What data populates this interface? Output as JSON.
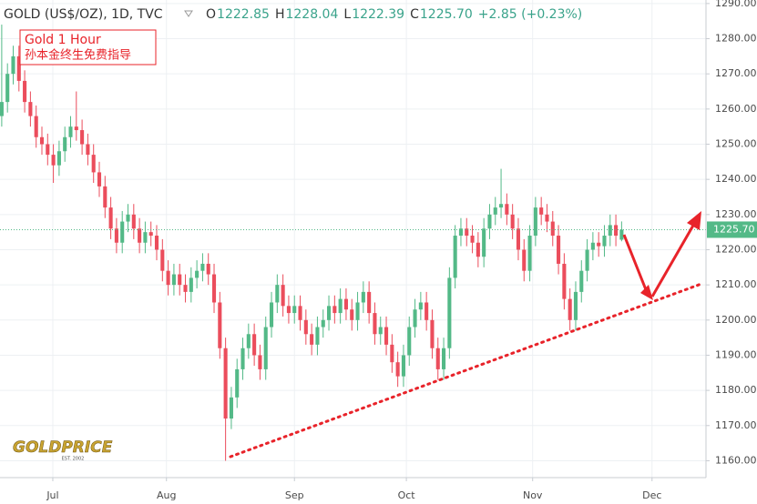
{
  "chart_data": {
    "type": "candlestick",
    "header": {
      "symbol": "GOLD (US$/OZ), 1D, TVC",
      "ohlc": [
        {
          "key": "O",
          "value": "1222.85"
        },
        {
          "key": "H",
          "value": "1228.04"
        },
        {
          "key": "L",
          "value": "1222.39"
        },
        {
          "key": "C",
          "value": "1225.70"
        }
      ],
      "change": "+2.85 (+0.23%)"
    },
    "annotation": {
      "line1": "Gold 1 Hour",
      "line2": "孙本金终生免费指导"
    },
    "logo": {
      "name": "GOLDPRICE",
      "est": "EST. 2002"
    },
    "last_price_label": "1225.70",
    "up_color": "#53b987",
    "down_color": "#eb4d5c",
    "open": [
      1258,
      1262,
      1270,
      1275,
      1268,
      1262,
      1258,
      1252,
      1250,
      1247,
      1244,
      1248,
      1252,
      1255,
      1254,
      1250,
      1247,
      1242,
      1238,
      1232,
      1226,
      1222,
      1228,
      1230,
      1226,
      1222,
      1225,
      1224,
      1220,
      1214,
      1210,
      1213,
      1210,
      1208,
      1212,
      1214,
      1216,
      1213,
      1205,
      1192,
      1172,
      1178,
      1186,
      1192,
      1196,
      1190,
      1186,
      1198,
      1205,
      1210,
      1204,
      1202,
      1204,
      1200,
      1196,
      1193,
      1198,
      1200,
      1204,
      1202,
      1206,
      1203,
      1200,
      1205,
      1208,
      1202,
      1196,
      1198,
      1193,
      1188,
      1184,
      1190,
      1198,
      1203,
      1205,
      1200,
      1192,
      1186,
      1192,
      1212,
      1224,
      1226,
      1224,
      1222,
      1218,
      1226,
      1230,
      1232,
      1233,
      1230,
      1226,
      1220,
      1214,
      1224,
      1232,
      1230,
      1228,
      1224,
      1216,
      1206,
      1200,
      1208,
      1214,
      1220,
      1222,
      1221,
      1224,
      1227,
      1222.85
    ],
    "high": [
      1284,
      1273,
      1278,
      1278,
      1271,
      1265,
      1261,
      1255,
      1253,
      1250,
      1251,
      1255,
      1258,
      1265,
      1257,
      1253,
      1250,
      1245,
      1241,
      1235,
      1229,
      1231,
      1233,
      1233,
      1229,
      1228,
      1228,
      1227,
      1223,
      1217,
      1216,
      1216,
      1213,
      1215,
      1217,
      1219,
      1219,
      1216,
      1208,
      1195,
      1181,
      1189,
      1195,
      1199,
      1199,
      1193,
      1201,
      1208,
      1213,
      1213,
      1207,
      1207,
      1207,
      1203,
      1199,
      1201,
      1203,
      1207,
      1207,
      1209,
      1209,
      1206,
      1208,
      1211,
      1211,
      1205,
      1201,
      1201,
      1196,
      1191,
      1193,
      1201,
      1206,
      1208,
      1208,
      1203,
      1195,
      1195,
      1215,
      1227,
      1229,
      1229,
      1227,
      1225,
      1229,
      1233,
      1235,
      1243,
      1236,
      1233,
      1229,
      1223,
      1227,
      1235,
      1235,
      1233,
      1231,
      1227,
      1219,
      1209,
      1211,
      1217,
      1223,
      1225,
      1225,
      1227,
      1230,
      1230,
      1228.04
    ],
    "low": [
      1255,
      1259,
      1267,
      1265,
      1259,
      1255,
      1249,
      1247,
      1244,
      1239,
      1241,
      1245,
      1249,
      1251,
      1247,
      1244,
      1239,
      1235,
      1229,
      1223,
      1219,
      1219,
      1225,
      1223,
      1219,
      1219,
      1221,
      1217,
      1211,
      1207,
      1207,
      1207,
      1205,
      1205,
      1209,
      1211,
      1210,
      1202,
      1189,
      1160,
      1169,
      1175,
      1183,
      1189,
      1187,
      1183,
      1183,
      1195,
      1202,
      1201,
      1199,
      1199,
      1197,
      1193,
      1190,
      1190,
      1195,
      1197,
      1199,
      1199,
      1200,
      1197,
      1197,
      1202,
      1199,
      1193,
      1193,
      1190,
      1185,
      1181,
      1181,
      1187,
      1195,
      1200,
      1197,
      1189,
      1183,
      1183,
      1189,
      1209,
      1221,
      1221,
      1219,
      1215,
      1215,
      1223,
      1227,
      1229,
      1227,
      1223,
      1217,
      1211,
      1211,
      1221,
      1227,
      1225,
      1221,
      1213,
      1203,
      1197,
      1197,
      1205,
      1211,
      1217,
      1218,
      1218,
      1221,
      1221,
      1222.39
    ],
    "close": [
      1262,
      1270,
      1275,
      1268,
      1262,
      1258,
      1252,
      1250,
      1247,
      1244,
      1248,
      1252,
      1255,
      1254,
      1250,
      1247,
      1242,
      1238,
      1232,
      1226,
      1222,
      1228,
      1230,
      1226,
      1222,
      1225,
      1224,
      1220,
      1214,
      1210,
      1213,
      1210,
      1208,
      1212,
      1214,
      1216,
      1213,
      1205,
      1192,
      1172,
      1178,
      1186,
      1192,
      1196,
      1190,
      1186,
      1198,
      1205,
      1210,
      1204,
      1202,
      1204,
      1200,
      1196,
      1193,
      1198,
      1200,
      1204,
      1202,
      1206,
      1203,
      1200,
      1205,
      1208,
      1202,
      1196,
      1198,
      1193,
      1188,
      1184,
      1190,
      1198,
      1203,
      1205,
      1200,
      1192,
      1186,
      1192,
      1212,
      1224,
      1226,
      1224,
      1222,
      1218,
      1226,
      1230,
      1232,
      1233,
      1230,
      1226,
      1220,
      1214,
      1224,
      1232,
      1230,
      1228,
      1224,
      1216,
      1206,
      1200,
      1208,
      1214,
      1220,
      1222,
      1221,
      1224,
      1227,
      1224,
      1225.7
    ],
    "xlim": [
      -0.3,
      122.7
    ],
    "xticks": [
      {
        "value": 8.9,
        "label": "Jul"
      },
      {
        "value": 28.7,
        "label": "Aug"
      },
      {
        "value": 51,
        "label": "Sep"
      },
      {
        "value": 70.5,
        "label": "Oct"
      },
      {
        "value": 92.5,
        "label": "Nov"
      },
      {
        "value": 113.3,
        "label": "Dec"
      }
    ],
    "ylim": [
      1155.2,
      1291
    ],
    "yticks": [
      {
        "value": 1160,
        "label": "1160.00"
      },
      {
        "value": 1170,
        "label": "1170.00"
      },
      {
        "value": 1180,
        "label": "1180.00"
      },
      {
        "value": 1190,
        "label": "1190.00"
      },
      {
        "value": 1200,
        "label": "1200.00"
      },
      {
        "value": 1210,
        "label": "1210.00"
      },
      {
        "value": 1220,
        "label": "1220.00"
      },
      {
        "value": 1230,
        "label": "1230.00"
      },
      {
        "value": 1240,
        "label": "1240.00"
      },
      {
        "value": 1250,
        "label": "1250.00"
      },
      {
        "value": 1260,
        "label": "1260.00"
      },
      {
        "value": 1270,
        "label": "1270.00"
      },
      {
        "value": 1280,
        "label": "1280.00"
      },
      {
        "value": 1290,
        "label": "1290.00"
      }
    ],
    "grid": true
  }
}
